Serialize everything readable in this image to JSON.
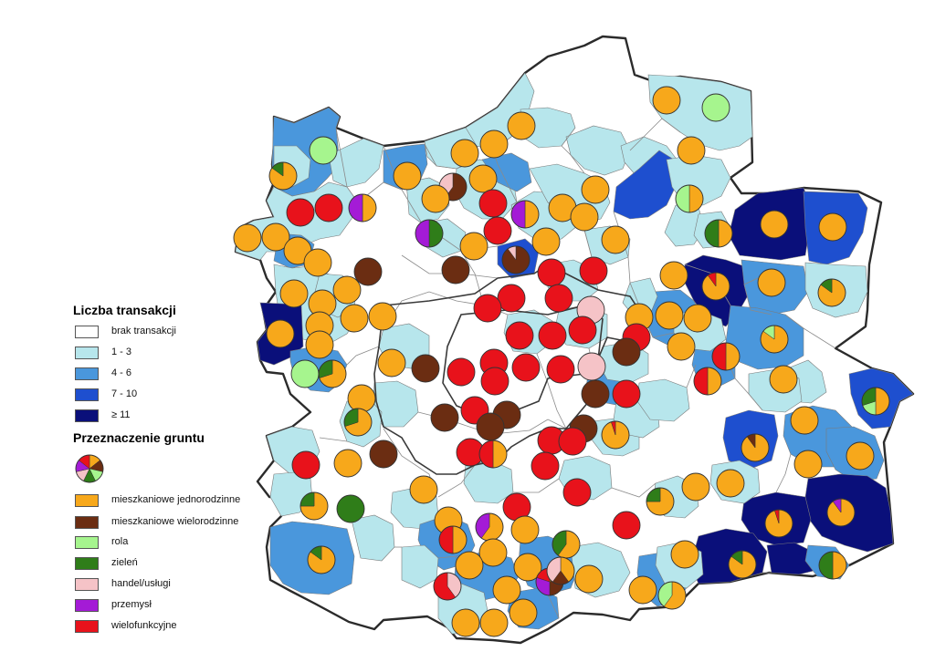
{
  "colors": {
    "class_0": "#ffffff",
    "class_1": "#b7e6ec",
    "class_2": "#4a97dc",
    "class_3": "#1e4fcf",
    "class_4": "#0a0f7a",
    "jednorodzinne": "#f7a81b",
    "wielorodzinne": "#6b2d12",
    "rola": "#a6f58e",
    "zielen": "#2f7d19",
    "handel": "#f5c3c7",
    "przemysl": "#a41bd6",
    "wielofunkcyjne": "#e8121b",
    "border": "#333333"
  },
  "legend": {
    "transactions_title": "Liczba transakcji",
    "transactions_classes": [
      {
        "label": "brak transakcji",
        "color_key": "class_0"
      },
      {
        "label": "1 - 3",
        "color_key": "class_1"
      },
      {
        "label": "4 - 6",
        "color_key": "class_2"
      },
      {
        "label": "7 - 10",
        "color_key": "class_3"
      },
      {
        "label": "≥ 11",
        "color_key": "class_4"
      }
    ],
    "land_use_title": "Przeznaczenie gruntu",
    "land_use_categories": [
      {
        "label": "mieszkaniowe jednorodzinne",
        "color_key": "jednorodzinne"
      },
      {
        "label": "mieszkaniowe wielorodzinne",
        "color_key": "wielorodzinne"
      },
      {
        "label": "rola",
        "color_key": "rola"
      },
      {
        "label": "zieleń",
        "color_key": "zielen"
      },
      {
        "label": "handel/usługi",
        "color_key": "handel"
      },
      {
        "label": "przemysł",
        "color_key": "przemysl"
      },
      {
        "label": "wielofunkcyjne",
        "color_key": "wielofunkcyjne"
      }
    ]
  }
}
